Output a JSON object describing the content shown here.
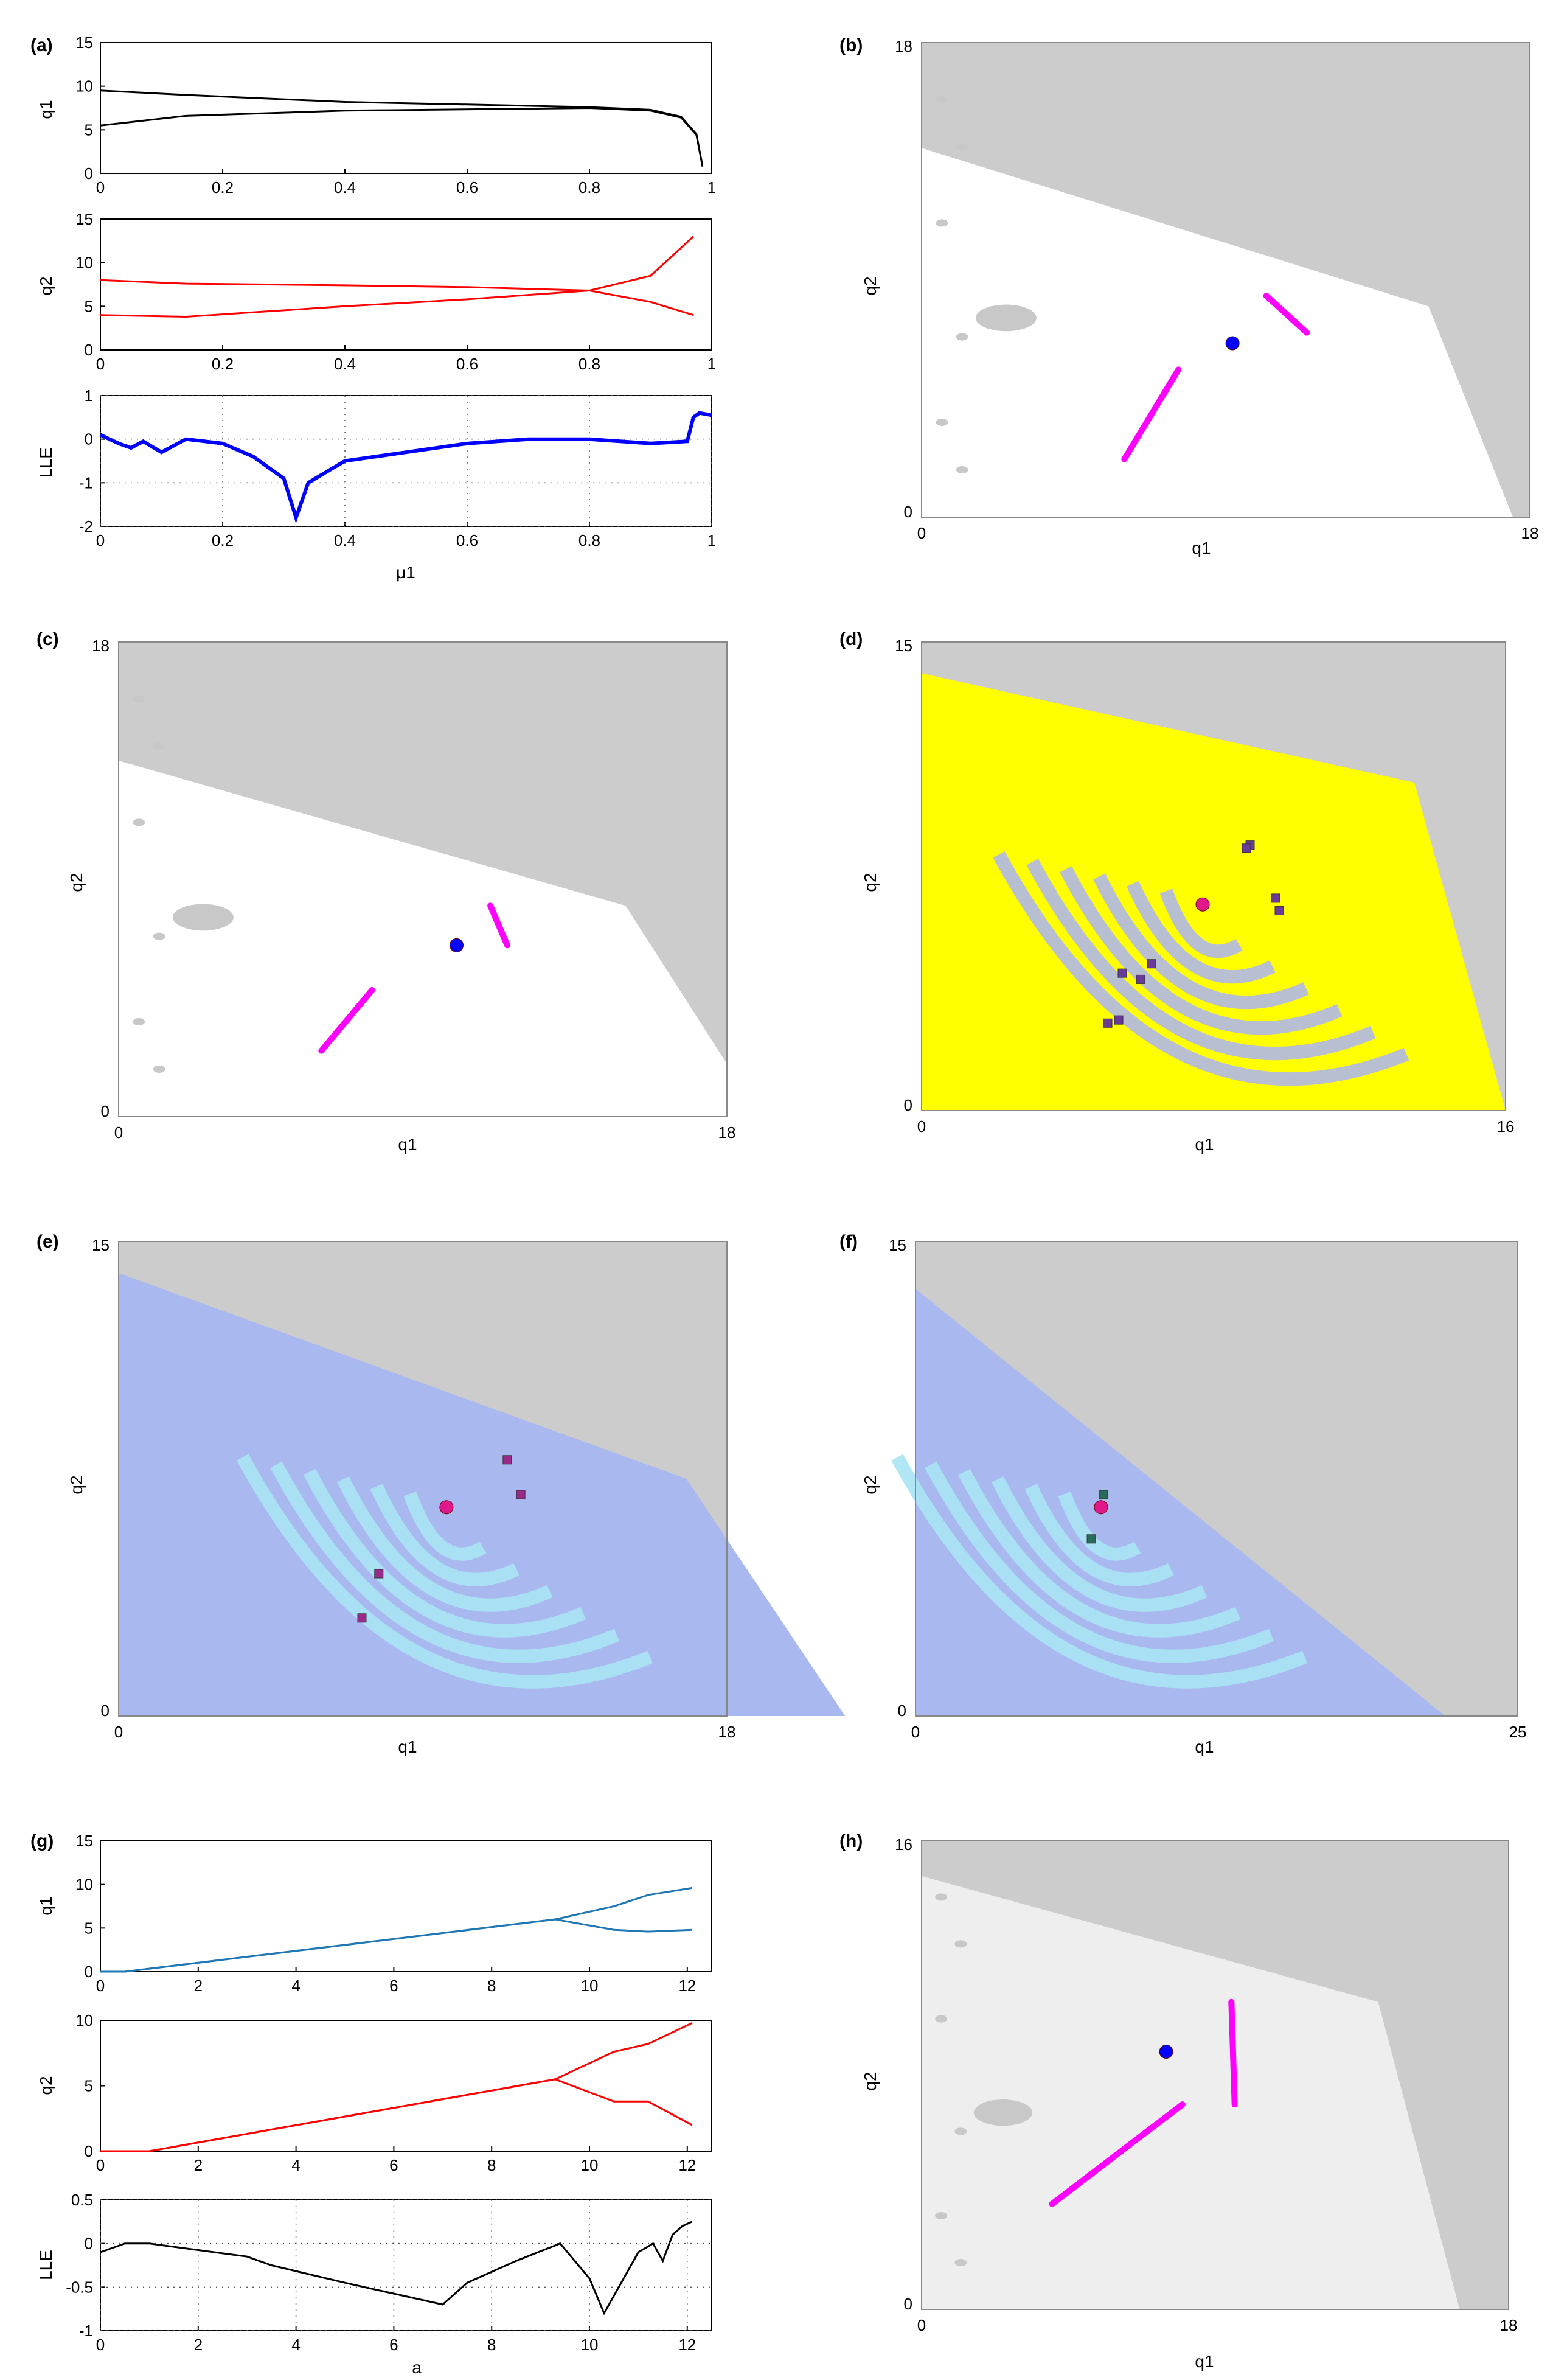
{
  "figure": {
    "panels": [
      "(a)",
      "(b)",
      "(c)",
      "(d)",
      "(e)",
      "(f)",
      "(g)",
      "(h)"
    ]
  },
  "chart_data": [
    {
      "id": "a",
      "type": "bifurcation",
      "label": "(a)",
      "xlabel": "μ1",
      "xlim": [
        0,
        1
      ],
      "xticks": [
        "0",
        "0.2",
        "0.4",
        "0.6",
        "0.8",
        "1"
      ],
      "subplots": [
        {
          "ylabel": "q1",
          "ylim": [
            0,
            15
          ],
          "yticks": [
            "0",
            "5",
            "10",
            "15"
          ],
          "color": "#000000",
          "branches": [
            {
              "x": [
                0,
                0.14,
                0.4,
                0.8,
                0.9,
                0.95,
                0.975,
                0.985
              ],
              "y": [
                9.5,
                9.0,
                8.2,
                7.6,
                7.3,
                6.5,
                4.5,
                0.8
              ]
            },
            {
              "x": [
                0,
                0.14,
                0.4,
                0.8,
                0.9,
                0.95,
                0.975,
                0.985
              ],
              "y": [
                5.5,
                6.6,
                7.2,
                7.5,
                7.2,
                6.4,
                4.4,
                0.8
              ]
            }
          ]
        },
        {
          "ylabel": "q2",
          "ylim": [
            0,
            15
          ],
          "yticks": [
            "0",
            "5",
            "10",
            "15"
          ],
          "color": "#ff0000",
          "branches": [
            {
              "x": [
                0,
                0.14,
                0.4,
                0.6,
                0.8,
                0.9,
                0.97
              ],
              "y": [
                8.0,
                7.6,
                7.4,
                7.2,
                6.8,
                8.5,
                13
              ]
            },
            {
              "x": [
                0,
                0.14,
                0.4,
                0.6,
                0.8,
                0.9,
                0.97
              ],
              "y": [
                4.0,
                3.8,
                5.0,
                5.8,
                6.8,
                5.5,
                4.0
              ]
            }
          ]
        },
        {
          "ylabel": "LLE",
          "ylim": [
            -2,
            1
          ],
          "yticks": [
            "-2",
            "-1",
            "0",
            "1"
          ],
          "color": "#0000ff",
          "x": [
            0,
            0.03,
            0.05,
            0.07,
            0.1,
            0.14,
            0.2,
            0.25,
            0.3,
            0.32,
            0.34,
            0.4,
            0.5,
            0.6,
            0.7,
            0.8,
            0.9,
            0.96,
            0.97,
            0.98,
            1.0
          ],
          "y": [
            0.1,
            -0.1,
            -0.2,
            -0.05,
            -0.3,
            0.0,
            -0.1,
            -0.4,
            -0.9,
            -1.8,
            -1.0,
            -0.5,
            -0.3,
            -0.1,
            0.0,
            0.0,
            -0.1,
            -0.05,
            0.5,
            0.6,
            0.55
          ]
        }
      ]
    },
    {
      "id": "b",
      "type": "basin",
      "label": "(b)",
      "xlabel": "q1",
      "ylabel": "q2",
      "xlim": [
        0,
        18
      ],
      "ylim": [
        0,
        18
      ],
      "xticks": [
        "0",
        "18"
      ],
      "yticks": [
        "0",
        "18"
      ],
      "colors": {
        "outside": "#cccccc",
        "basin": "#ffffff",
        "islands": "#c8c8c8",
        "attractor": "#ff00ff",
        "point": "#0000ff"
      },
      "region": [
        [
          0,
          0
        ],
        [
          0,
          14
        ],
        [
          15,
          8
        ],
        [
          17.5,
          0
        ]
      ],
      "fixed_point": [
        9.2,
        6.6
      ],
      "attractor_segments": [
        [
          [
            6.0,
            2.2
          ],
          [
            7.6,
            5.6
          ]
        ],
        [
          [
            10.2,
            8.4
          ],
          [
            11.4,
            7.0
          ]
        ]
      ]
    },
    {
      "id": "c",
      "type": "basin",
      "label": "(c)",
      "xlabel": "q1",
      "ylabel": "q2",
      "xlim": [
        0,
        18
      ],
      "ylim": [
        0,
        18
      ],
      "xticks": [
        "0",
        "18"
      ],
      "yticks": [
        "0",
        "18"
      ],
      "colors": {
        "outside": "#cccccc",
        "basin": "#ffffff",
        "islands": "#c8c8c8",
        "attractor": "#ff00ff",
        "point": "#0000ff"
      },
      "region": [
        [
          0,
          0
        ],
        [
          0,
          13.5
        ],
        [
          15,
          8
        ],
        [
          19,
          0
        ]
      ],
      "fixed_point": [
        10.0,
        6.5
      ],
      "attractor_segments": [
        [
          [
            6.0,
            2.5
          ],
          [
            7.5,
            4.8
          ]
        ],
        [
          [
            11.0,
            8.0
          ],
          [
            11.5,
            6.5
          ]
        ]
      ]
    },
    {
      "id": "d",
      "type": "basin",
      "label": "(d)",
      "xlabel": "q1",
      "ylabel": "q2",
      "xlim": [
        0,
        16
      ],
      "ylim": [
        0,
        15
      ],
      "xticks": [
        "0",
        "16"
      ],
      "yticks": [
        "0",
        "15"
      ],
      "colors": {
        "outside": "#cccccc",
        "basin_a": "#ffff00",
        "basin_b": "#b0b8e8",
        "point": "#e0188a",
        "orbit": "#6a3a9a"
      },
      "region": [
        [
          0,
          0
        ],
        [
          0,
          14
        ],
        [
          13.5,
          10.5
        ],
        [
          16,
          0
        ]
      ],
      "fixed_point": [
        7.7,
        6.6
      ],
      "orbit_points": [
        [
          9.0,
          8.5
        ],
        [
          8.9,
          8.4
        ],
        [
          9.7,
          6.8
        ],
        [
          9.8,
          6.4
        ],
        [
          6.3,
          4.7
        ],
        [
          5.5,
          4.4
        ],
        [
          5.1,
          2.8
        ],
        [
          5.4,
          2.9
        ],
        [
          6.0,
          4.2
        ]
      ]
    },
    {
      "id": "e",
      "type": "basin",
      "label": "(e)",
      "xlabel": "q1",
      "ylabel": "q2",
      "xlim": [
        0,
        18
      ],
      "ylim": [
        0,
        15
      ],
      "xticks": [
        "0",
        "18"
      ],
      "yticks": [
        "0",
        "15"
      ],
      "colors": {
        "outside": "#cccccc",
        "basin_a": "#aab8f0",
        "basin_b": "#a8e4f4",
        "point": "#e0188a",
        "orbit": "#9a2a8a"
      },
      "region": [
        [
          0,
          0
        ],
        [
          0,
          14
        ],
        [
          16.8,
          7.5
        ],
        [
          21.5,
          0
        ]
      ],
      "fixed_point": [
        9.7,
        6.6
      ],
      "orbit_points": [
        [
          11.5,
          8.1
        ],
        [
          11.9,
          7.0
        ],
        [
          7.7,
          4.5
        ],
        [
          7.2,
          3.1
        ]
      ]
    },
    {
      "id": "f",
      "type": "basin",
      "label": "(f)",
      "xlabel": "q1",
      "ylabel": "q2",
      "xlim": [
        0,
        25
      ],
      "ylim": [
        0,
        15
      ],
      "xticks": [
        "0",
        "25"
      ],
      "yticks": [
        "0",
        "15"
      ],
      "colors": {
        "outside": "#cccccc",
        "basin_a": "#aab8f0",
        "basin_b": "#a8e4f4",
        "point": "#e0188a",
        "orbit": "#2a6a5a"
      },
      "region": [
        [
          0,
          0
        ],
        [
          0,
          13.5
        ],
        [
          22,
          0
        ]
      ],
      "fixed_point": [
        7.7,
        6.6
      ],
      "orbit_points": [
        [
          7.8,
          7.0
        ],
        [
          7.3,
          5.6
        ]
      ]
    },
    {
      "id": "g",
      "type": "bifurcation",
      "label": "(g)",
      "xlabel": "a",
      "xlim": [
        0,
        12.5
      ],
      "xticks": [
        "0",
        "2",
        "4",
        "6",
        "8",
        "10",
        "12"
      ],
      "subplots": [
        {
          "ylabel": "q1",
          "ylim": [
            0,
            15
          ],
          "yticks": [
            "0",
            "5",
            "10",
            "15"
          ],
          "color": "#1f77b4",
          "branches": [
            {
              "x": [
                0,
                0.5,
                9.3,
                10.5,
                11.2,
                12.1
              ],
              "y": [
                0,
                0,
                6.0,
                7.5,
                8.8,
                9.6
              ]
            },
            {
              "x": [
                0,
                0.5,
                9.3,
                10.5,
                11.2,
                12.1
              ],
              "y": [
                0,
                0,
                6.0,
                4.8,
                4.6,
                4.8
              ]
            }
          ]
        },
        {
          "ylabel": "q2",
          "ylim": [
            0,
            10
          ],
          "yticks": [
            "0",
            "5",
            "10"
          ],
          "color": "#ff0000",
          "branches": [
            {
              "x": [
                0,
                1.0,
                9.3,
                10.5,
                11.2,
                12.1
              ],
              "y": [
                0,
                0,
                5.5,
                7.6,
                8.2,
                9.8
              ]
            },
            {
              "x": [
                0,
                1.0,
                9.3,
                10.5,
                11.2,
                12.1
              ],
              "y": [
                0,
                0,
                5.5,
                3.8,
                3.8,
                2.0
              ]
            }
          ]
        },
        {
          "ylabel": "LLE",
          "ylim": [
            -1,
            0.5
          ],
          "yticks": [
            "-1",
            "-0.5",
            "0",
            "0.5"
          ],
          "color": "#000000",
          "x": [
            0,
            0.5,
            1.0,
            3.0,
            3.5,
            5.0,
            7.0,
            7.5,
            8.5,
            9.4,
            10.0,
            10.3,
            11.0,
            11.3,
            11.5,
            11.7,
            11.9,
            12.1
          ],
          "y": [
            -0.1,
            0.0,
            0.0,
            -0.15,
            -0.25,
            -0.45,
            -0.7,
            -0.45,
            -0.2,
            0.0,
            -0.4,
            -0.8,
            -0.1,
            0.0,
            -0.2,
            0.1,
            0.2,
            0.25
          ]
        }
      ]
    },
    {
      "id": "h",
      "type": "basin",
      "label": "(h)",
      "xlabel": "q1",
      "ylabel": "q2",
      "xlim": [
        0,
        18
      ],
      "ylim": [
        0,
        16
      ],
      "xticks": [
        "0",
        "18"
      ],
      "yticks": [
        "0",
        "16"
      ],
      "colors": {
        "outside": "#cccccc",
        "basin": "#eeeeee",
        "islands": "#c8c8c8",
        "attractor": "#ff00ff",
        "point": "#0000ff"
      },
      "region": [
        [
          0,
          0
        ],
        [
          0,
          14.8
        ],
        [
          14,
          10.5
        ],
        [
          16.5,
          0
        ]
      ],
      "fixed_point": [
        7.5,
        8.8
      ],
      "attractor_segments": [
        [
          [
            4.0,
            3.6
          ],
          [
            8.0,
            7.0
          ]
        ],
        [
          [
            9.5,
            10.5
          ],
          [
            9.6,
            7.0
          ]
        ]
      ]
    }
  ]
}
